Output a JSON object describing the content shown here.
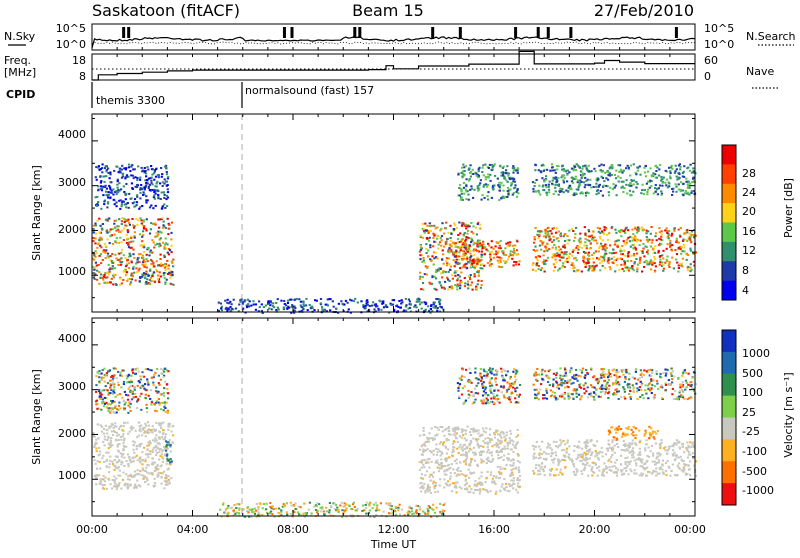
{
  "header": {
    "station": "Saskatoon (fitACF)",
    "beam": "Beam 15",
    "date": "27/Feb/2010"
  },
  "noise_panel": {
    "left_label": "N.Sky",
    "right_label": "N.Search",
    "left_ticks": [
      "10^5",
      "10^0"
    ],
    "right_ticks": [
      "10^5",
      "10^0"
    ]
  },
  "freq_panel": {
    "left_label_line1": "Freq.",
    "left_label_line2": "[MHz]",
    "right_label": "Nave",
    "left_ticks": [
      "18",
      "8"
    ],
    "right_ticks": [
      "60",
      "0"
    ]
  },
  "cpid": {
    "label": "CPID",
    "modes": [
      {
        "name": "themis 3300",
        "start_hour": 0
      },
      {
        "name": "normalsound (fast) 157",
        "start_hour": 6
      }
    ]
  },
  "power_panel": {
    "ylabel": "Slant Range [km]",
    "yticks": [
      "4000",
      "3000",
      "2000",
      "1000"
    ],
    "colorbar_label": "Power [dB]",
    "colorbar_ticks": [
      "28",
      "24",
      "20",
      "16",
      "12",
      "8",
      "4"
    ],
    "colors": [
      "#0000ee",
      "#1e3aa8",
      "#2f8f6f",
      "#5cc84a",
      "#ffd21a",
      "#ff8a00",
      "#ff4000",
      "#ee0000"
    ]
  },
  "velocity_panel": {
    "ylabel": "Slant Range [km]",
    "yticks": [
      "4000",
      "3000",
      "2000",
      "1000"
    ],
    "colorbar_label": "Velocity [m s⁻¹]",
    "colorbar_ticks": [
      "1000",
      "500",
      "100",
      "25",
      "-25",
      "-100",
      "-500",
      "-1000"
    ],
    "colors": [
      "#1030c0",
      "#1e6bb0",
      "#2f8f4f",
      "#7ed04a",
      "#c8c8c0",
      "#ffb020",
      "#ff7000",
      "#ee1010"
    ]
  },
  "x_axis": {
    "label": "Time UT",
    "ticks": [
      "00:00",
      "04:00",
      "08:00",
      "12:00",
      "16:00",
      "20:00",
      "00:00"
    ]
  },
  "chart_data": [
    {
      "type": "line",
      "title": "Saskatoon (fitACF) Beam 15 27/Feb/2010",
      "xlabel": "",
      "ylabel": "N.Sky",
      "series": [
        {
          "name": "N.Sky"
        },
        {
          "name": "N.Search"
        }
      ],
      "y_scale": "log",
      "ylim": [
        1,
        100000
      ],
      "xlim": [
        0,
        24
      ]
    },
    {
      "type": "line",
      "xlabel": "",
      "ylabel": "Freq. [MHz]",
      "series": [
        {
          "name": "Freq.",
          "x_hours": [
            0,
            0.25,
            1,
            2,
            3,
            4,
            6,
            8,
            10,
            11,
            11.7,
            12,
            13,
            14,
            15,
            17,
            17.6,
            18,
            20,
            20.4,
            21,
            22,
            24
          ],
          "values": [
            8,
            10,
            10.5,
            11,
            11.5,
            11.8,
            11.8,
            11.8,
            11.8,
            12,
            13.5,
            12.3,
            13.4,
            13.4,
            14.1,
            19,
            14.2,
            14.2,
            14.5,
            15.5,
            14.9,
            14.3,
            14.3
          ]
        },
        {
          "name": "Nave"
        }
      ],
      "ylim": [
        8,
        18
      ],
      "xlim": [
        0,
        24
      ]
    },
    {
      "type": "heatmap",
      "title": "",
      "xlabel": "Time UT",
      "ylabel": "Slant Range [km]",
      "colorbar": "Power [dB]",
      "xlim": [
        0,
        24
      ],
      "ylim": [
        180,
        4600
      ],
      "color_levels": [
        4,
        8,
        12,
        16,
        20,
        24,
        28
      ],
      "regions": [
        {
          "t_start": 0.0,
          "t_end": 3.2,
          "r_min": 800,
          "r_max": 2300,
          "power_db": "8-28",
          "note": "two bands, peak near 1100 km"
        },
        {
          "t_start": 0.1,
          "t_end": 3.0,
          "r_min": 2500,
          "r_max": 3500,
          "power_db": "4-12"
        },
        {
          "t_start": 5.0,
          "t_end": 14.0,
          "r_min": 180,
          "r_max": 500,
          "power_db": "4-12",
          "note": "near-range ground echo"
        },
        {
          "t_start": 13.0,
          "t_end": 15.5,
          "r_min": 700,
          "r_max": 2200,
          "power_db": "8-28",
          "note": "descending band"
        },
        {
          "t_start": 14.5,
          "t_end": 17.0,
          "r_min": 1200,
          "r_max": 1800,
          "power_db": "16-28"
        },
        {
          "t_start": 14.5,
          "t_end": 17.0,
          "r_min": 2700,
          "r_max": 3500,
          "power_db": "8-16"
        },
        {
          "t_start": 17.5,
          "t_end": 24.0,
          "r_min": 1100,
          "r_max": 2100,
          "power_db": "12-28"
        },
        {
          "t_start": 17.5,
          "t_end": 24.0,
          "r_min": 2800,
          "r_max": 3500,
          "power_db": "8-16"
        }
      ]
    },
    {
      "type": "heatmap",
      "title": "",
      "xlabel": "Time UT",
      "ylabel": "Slant Range [km]",
      "colorbar": "Velocity [m s⁻¹]",
      "xlim": [
        0,
        24
      ],
      "ylim": [
        180,
        4600
      ],
      "color_levels": [
        1000,
        500,
        100,
        25,
        -25,
        -100,
        -500,
        -1000
      ],
      "regions": [
        {
          "t_start": 0.0,
          "t_end": 3.2,
          "r_min": 800,
          "r_max": 2300,
          "velocity": "-25 to 25",
          "note": "mostly gray ground scatter"
        },
        {
          "t_start": 2.9,
          "t_end": 3.2,
          "r_min": 1300,
          "r_max": 1900,
          "velocity": "100 to 500"
        },
        {
          "t_start": 0.1,
          "t_end": 3.0,
          "r_min": 2500,
          "r_max": 3500,
          "velocity": "-500 to 1000"
        },
        {
          "t_start": 5.0,
          "t_end": 14.0,
          "r_min": 180,
          "r_max": 500,
          "velocity": "-500 to 100"
        },
        {
          "t_start": 13.0,
          "t_end": 17.0,
          "r_min": 700,
          "r_max": 2200,
          "velocity": "-25 to 25"
        },
        {
          "t_start": 14.5,
          "t_end": 17.0,
          "r_min": 2700,
          "r_max": 3500,
          "velocity": "-1000 to 1000"
        },
        {
          "t_start": 17.5,
          "t_end": 24.0,
          "r_min": 1100,
          "r_max": 1900,
          "velocity": "-25 to 25"
        },
        {
          "t_start": 20.5,
          "t_end": 22.5,
          "r_min": 1900,
          "r_max": 2200,
          "velocity": "-100 to -500"
        },
        {
          "t_start": 17.5,
          "t_end": 24.0,
          "r_min": 2800,
          "r_max": 3500,
          "velocity": "-1000 to 1000"
        }
      ]
    }
  ]
}
